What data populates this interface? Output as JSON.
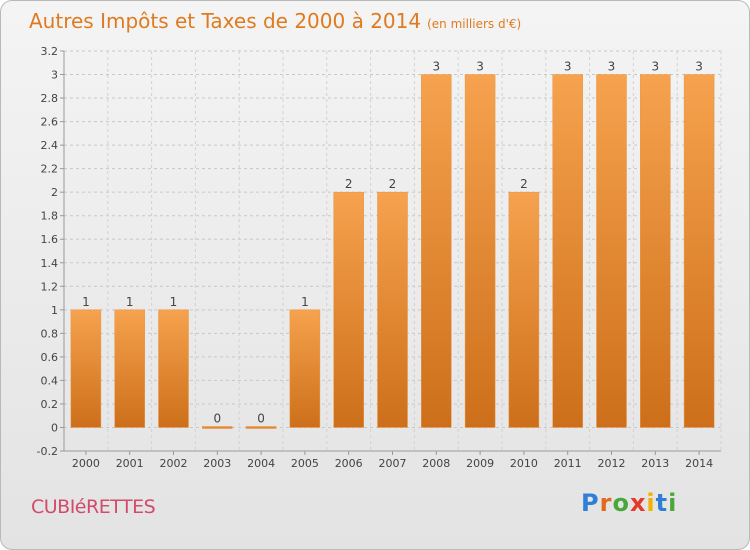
{
  "header": {
    "title": "Autres Impôts et Taxes de 2000 à 2014",
    "unit": "(en milliers d'€)"
  },
  "footer": {
    "commune": "CUBIéRETTES",
    "logo": "Proxiti"
  },
  "colors": {
    "bar_light": "#f6a24e",
    "bar_dark": "#cd6f1a",
    "title": "#e07a1f",
    "commune": "#d24b6b"
  },
  "chart_data": {
    "type": "bar",
    "categories": [
      "2000",
      "2001",
      "2002",
      "2003",
      "2004",
      "2005",
      "2006",
      "2007",
      "2008",
      "2009",
      "2010",
      "2011",
      "2012",
      "2013",
      "2014"
    ],
    "values": [
      1,
      1,
      1,
      0,
      0,
      1,
      2,
      2,
      3,
      3,
      2,
      3,
      3,
      3,
      3
    ],
    "labels": [
      "1",
      "1",
      "1",
      "0",
      "0",
      "1",
      "2",
      "2",
      "3",
      "3",
      "2",
      "3",
      "3",
      "3",
      "3"
    ],
    "ylim": [
      -0.2,
      3.2
    ],
    "yticks": [
      -0.2,
      0,
      0.2,
      0.4,
      0.6,
      0.8,
      1,
      1.2,
      1.4,
      1.6,
      1.8,
      2,
      2.2,
      2.4,
      2.6,
      2.8,
      3,
      3.2
    ],
    "ytick_labels": [
      "-0.2",
      "0",
      "0.2",
      "0.4",
      "0.6",
      "0.8",
      "1",
      "1.2",
      "1.4",
      "1.6",
      "1.8",
      "2",
      "2.2",
      "2.4",
      "2.6",
      "2.8",
      "3",
      "3.2"
    ],
    "grid": "horizontal dashed",
    "title": "Autres Impôts et Taxes de 2000 à 2014",
    "xlabel": "",
    "ylabel": ""
  }
}
